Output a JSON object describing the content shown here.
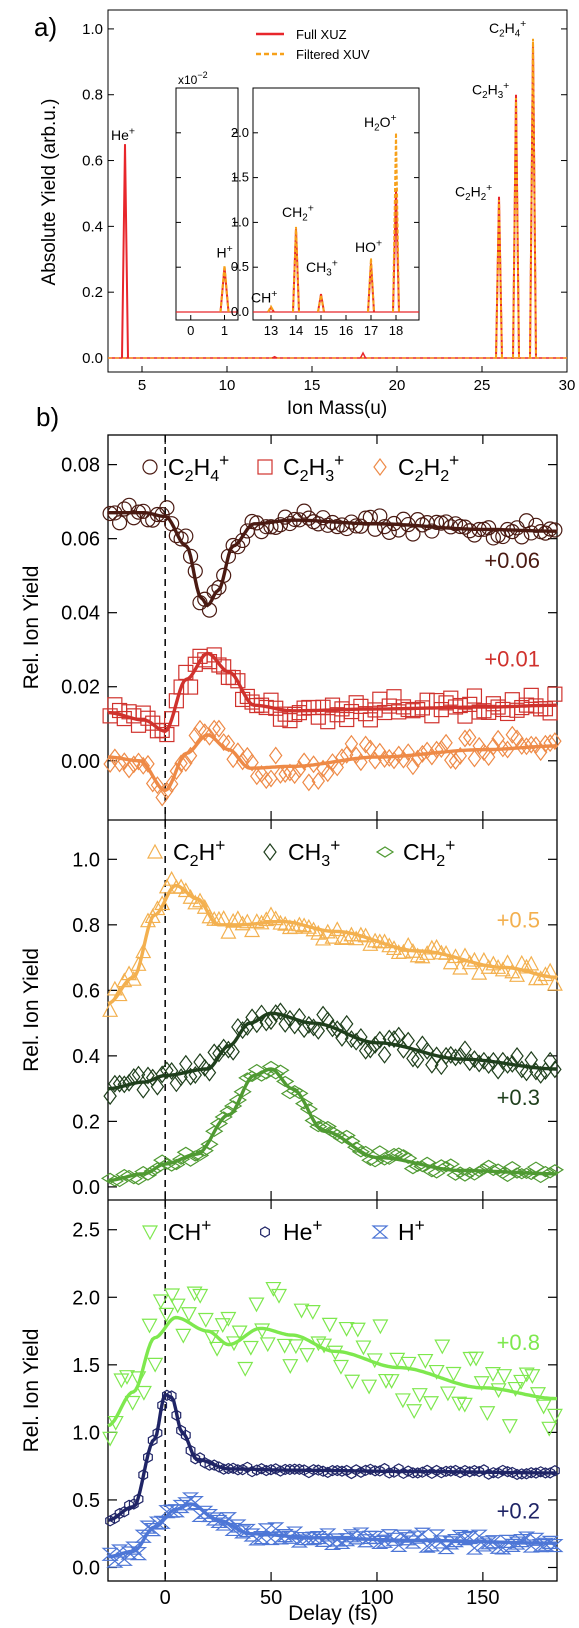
{
  "panel_a": {
    "label": "a)",
    "chart_data": {
      "type": "bar",
      "ylabel": "Absolute Yield (arb.u.)",
      "xlabel": "Ion Mass(u)",
      "xlim": [
        3,
        30
      ],
      "ylim": [
        0,
        1.1
      ],
      "xticks": [
        "5",
        "10",
        "15",
        "20",
        "25",
        "30"
      ],
      "yticks": [
        "0.0",
        "0.2",
        "0.4",
        "0.6",
        "0.8",
        "1.0"
      ],
      "legend": {
        "position": "top-center",
        "full_label": "Full XUZ",
        "filtered_label": "Filtered XUV"
      },
      "colors": {
        "full": "#e8262b",
        "filtered": "#f7a11a"
      },
      "peaks": [
        {
          "mass": 4,
          "full": 0.65,
          "filtered": 0.0,
          "label": "He",
          "charge": "+"
        },
        {
          "mass": 26,
          "full": 0.49,
          "filtered": 0.48,
          "label": "C2H2",
          "charge": "+"
        },
        {
          "mass": 27,
          "full": 0.8,
          "filtered": 0.79,
          "label": "C2H3",
          "charge": "+"
        },
        {
          "mass": 28,
          "full": 0.96,
          "filtered": 0.97,
          "label": "C2H4",
          "charge": "+"
        }
      ],
      "inset1": {
        "multiplier": "x10",
        "multiplier_exp": "−2",
        "xticks": [
          "0",
          "1"
        ],
        "yticks": [],
        "peaks": [
          {
            "mass": 1,
            "full": 0.5,
            "filtered": 0.52,
            "label": "H",
            "charge": "+"
          }
        ]
      },
      "inset2": {
        "xticks": [
          "13",
          "14",
          "15",
          "16",
          "17",
          "18"
        ],
        "yticks": [
          "0.0",
          "0.5",
          "1.0",
          "1.5",
          "2.0"
        ],
        "ylim": [
          0,
          2.5
        ],
        "peaks": [
          {
            "mass": 13,
            "full": 0.05,
            "filtered": 0.06,
            "label": "CH",
            "charge": "+"
          },
          {
            "mass": 14,
            "full": 0.93,
            "filtered": 0.95,
            "label": "CH2",
            "charge": "+"
          },
          {
            "mass": 15,
            "full": 0.2,
            "filtered": 0.19,
            "label": "CH3",
            "charge": "+"
          },
          {
            "mass": 17,
            "full": 0.55,
            "filtered": 0.6,
            "label": "HO",
            "charge": "+"
          },
          {
            "mass": 18,
            "full": 1.35,
            "filtered": 2.0,
            "label": "H2O",
            "charge": "+"
          }
        ]
      }
    }
  },
  "panel_b": {
    "label": "b)",
    "xlabel": "Delay (fs)",
    "xlim": [
      -27,
      185
    ],
    "xticks": [
      "0",
      "50",
      "100",
      "150"
    ],
    "chart_data": [
      {
        "type": "scatter",
        "ylabel": "Rel. Ion Yield",
        "ylim": [
          -0.016,
          0.088
        ],
        "yticks": [
          "0.00",
          "0.02",
          "0.04",
          "0.06",
          "0.08"
        ],
        "series": [
          {
            "name": "C2H4+",
            "marker": "circle",
            "color": "#4a1a12",
            "offset": "+0.06",
            "fit": [
              [
                -27,
                0.067
              ],
              [
                -10,
                0.067
              ],
              [
                0,
                0.066
              ],
              [
                10,
                0.058
              ],
              [
                17,
                0.044
              ],
              [
                20,
                0.042
              ],
              [
                25,
                0.046
              ],
              [
                32,
                0.058
              ],
              [
                42,
                0.064
              ],
              [
                60,
                0.065
              ],
              [
                100,
                0.064
              ],
              [
                150,
                0.0625
              ],
              [
                185,
                0.062
              ]
            ],
            "noise": 0.0018,
            "n": 95
          },
          {
            "name": "C2H3+",
            "marker": "square",
            "color": "#d0322d",
            "offset": "+0.01",
            "fit": [
              [
                -27,
                0.013
              ],
              [
                -10,
                0.011
              ],
              [
                0,
                0.008
              ],
              [
                10,
                0.022
              ],
              [
                20,
                0.029
              ],
              [
                30,
                0.024
              ],
              [
                42,
                0.015
              ],
              [
                60,
                0.0135
              ],
              [
                100,
                0.014
              ],
              [
                150,
                0.0145
              ],
              [
                185,
                0.015
              ]
            ],
            "noise": 0.0022,
            "n": 95
          },
          {
            "name": "C2H2+",
            "marker": "diamond",
            "color": "#ee8a47",
            "offset": "",
            "fit": [
              [
                -27,
                0.001
              ],
              [
                -12,
                0.0
              ],
              [
                0,
                -0.008
              ],
              [
                10,
                0.002
              ],
              [
                20,
                0.007
              ],
              [
                30,
                0.003
              ],
              [
                40,
                -0.002
              ],
              [
                60,
                -0.0015
              ],
              [
                100,
                0.001
              ],
              [
                150,
                0.003
              ],
              [
                185,
                0.004
              ]
            ],
            "noise": 0.0032,
            "n": 95
          }
        ]
      },
      {
        "type": "scatter",
        "ylabel": "Rel. Ion Yield",
        "ylim": [
          -0.04,
          1.12
        ],
        "yticks": [
          "0.0",
          "0.2",
          "0.4",
          "0.6",
          "0.8",
          "1.0"
        ],
        "series": [
          {
            "name": "C2H+",
            "marker": "triangle-up",
            "color": "#f3b04f",
            "offset": "+0.5",
            "fit": [
              [
                -27,
                0.56
              ],
              [
                -15,
                0.64
              ],
              [
                -5,
                0.83
              ],
              [
                5,
                0.92
              ],
              [
                15,
                0.88
              ],
              [
                25,
                0.8
              ],
              [
                35,
                0.8
              ],
              [
                55,
                0.81
              ],
              [
                80,
                0.78
              ],
              [
                120,
                0.72
              ],
              [
                160,
                0.67
              ],
              [
                185,
                0.64
              ]
            ],
            "noise": 0.022,
            "n": 95
          },
          {
            "name": "CH3+",
            "marker": "diamond",
            "color": "#1f3f1c",
            "offset": "+0.3",
            "fit": [
              [
                -27,
                0.3
              ],
              [
                -10,
                0.32
              ],
              [
                0,
                0.34
              ],
              [
                20,
                0.36
              ],
              [
                30,
                0.43
              ],
              [
                40,
                0.5
              ],
              [
                50,
                0.53
              ],
              [
                70,
                0.5
              ],
              [
                100,
                0.44
              ],
              [
                140,
                0.39
              ],
              [
                185,
                0.36
              ]
            ],
            "noise": 0.03,
            "n": 95
          },
          {
            "name": "CH2+",
            "marker": "diamond-thin",
            "color": "#4f9a32",
            "offset": "",
            "fit": [
              [
                -27,
                0.02
              ],
              [
                -10,
                0.04
              ],
              [
                0,
                0.07
              ],
              [
                15,
                0.1
              ],
              [
                30,
                0.22
              ],
              [
                42,
                0.34
              ],
              [
                50,
                0.36
              ],
              [
                60,
                0.3
              ],
              [
                75,
                0.17
              ],
              [
                100,
                0.09
              ],
              [
                140,
                0.05
              ],
              [
                185,
                0.04
              ]
            ],
            "noise": 0.014,
            "n": 95
          }
        ]
      },
      {
        "type": "scatter",
        "ylabel": "Rel. Ion Yield",
        "ylim": [
          -0.1,
          2.72
        ],
        "yticks": [
          "0.0",
          "0.5",
          "1.0",
          "1.5",
          "2.0",
          "2.5"
        ],
        "series": [
          {
            "name": "CH+",
            "marker": "triangle-down",
            "color": "#7ee84e",
            "offset": "+0.8",
            "fit": [
              [
                -27,
                1.05
              ],
              [
                -15,
                1.3
              ],
              [
                -5,
                1.7
              ],
              [
                5,
                1.85
              ],
              [
                20,
                1.75
              ],
              [
                30,
                1.65
              ],
              [
                45,
                1.77
              ],
              [
                60,
                1.72
              ],
              [
                80,
                1.6
              ],
              [
                110,
                1.48
              ],
              [
                150,
                1.33
              ],
              [
                185,
                1.25
              ]
            ],
            "noise": 0.22,
            "n": 80
          },
          {
            "name": "He+",
            "marker": "hexagon",
            "color": "#1f2466",
            "offset": "+0.2",
            "fit": [
              [
                -27,
                0.35
              ],
              [
                -15,
                0.45
              ],
              [
                -5,
                0.95
              ],
              [
                0,
                1.28
              ],
              [
                3,
                1.26
              ],
              [
                8,
                1.0
              ],
              [
                15,
                0.8
              ],
              [
                30,
                0.73
              ],
              [
                60,
                0.72
              ],
              [
                120,
                0.71
              ],
              [
                185,
                0.7
              ]
            ],
            "noise": 0.015,
            "n": 95
          },
          {
            "name": "H+",
            "marker": "hourglass",
            "color": "#4d76d6",
            "offset": "",
            "fit": [
              [
                -27,
                0.08
              ],
              [
                -15,
                0.12
              ],
              [
                -5,
                0.3
              ],
              [
                5,
                0.43
              ],
              [
                12,
                0.47
              ],
              [
                25,
                0.35
              ],
              [
                40,
                0.25
              ],
              [
                70,
                0.22
              ],
              [
                120,
                0.2
              ],
              [
                185,
                0.18
              ]
            ],
            "noise": 0.035,
            "n": 95
          }
        ]
      }
    ]
  }
}
